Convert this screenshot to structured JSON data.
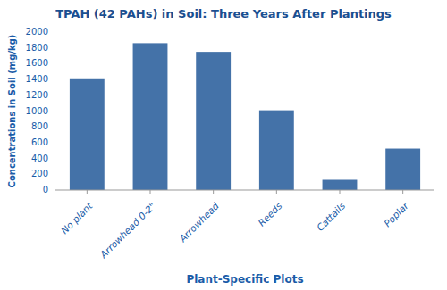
{
  "chart_data": {
    "type": "bar",
    "title": "TPAH (42 PAHs) in Soil: Three Years After Plantings",
    "xlabel": "Plant-Specific Plots",
    "ylabel": "Concentrations in Soil (mg/kg)",
    "categories": [
      "No plant",
      "Arrowhead 0-2\"",
      "Arrowhead",
      "Reeds",
      "Cattails",
      "Poplar"
    ],
    "values": [
      1415,
      1860,
      1750,
      1010,
      130,
      525
    ],
    "color": "#4472a8",
    "ylim": [
      0,
      2000
    ],
    "yticks": [
      0,
      200,
      400,
      600,
      800,
      1000,
      1200,
      1400,
      1600,
      1800,
      2000
    ],
    "grid": false
  }
}
